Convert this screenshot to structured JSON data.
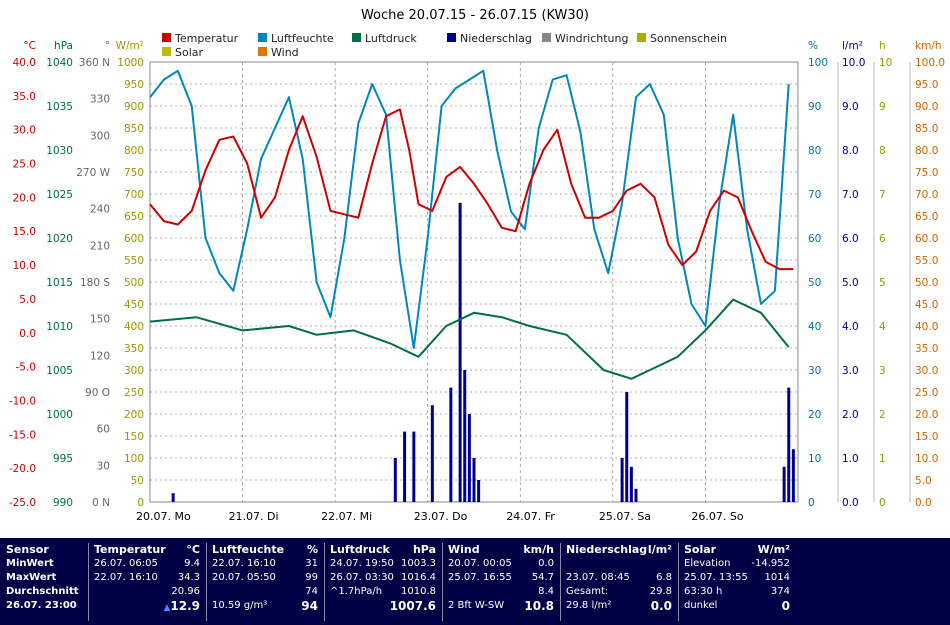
{
  "title": "Woche 20.07.15 - 26.07.15 (KW30)",
  "chart_data": {
    "type": "line",
    "x_label_days": [
      "20.07. Mo",
      "21.07. Di",
      "22.07. Mi",
      "23.07. Do",
      "24.07. Fr",
      "25.07. Sa",
      "26.07. So"
    ],
    "axes": {
      "temperature": {
        "unit": "°C",
        "ticks": [
          "40.0",
          "35.0",
          "30.0",
          "25.0",
          "20.0",
          "15.0",
          "10.0",
          "5.0",
          "0.0",
          "-5.0",
          "-10.0",
          "-15.0",
          "-20.0",
          "-25.0"
        ],
        "color": "#cc0000"
      },
      "pressure": {
        "unit": "hPa",
        "ticks": [
          "1040",
          "1035",
          "1030",
          "1025",
          "1020",
          "1015",
          "1010",
          "1005",
          "1000",
          "995",
          "990"
        ],
        "color": "#007040"
      },
      "direction": {
        "unit": "°",
        "ticks": [
          "360 N",
          "330",
          "300",
          "270 W",
          "240",
          "210",
          "180 S",
          "150",
          "120",
          "90 O",
          "60",
          "30",
          "0 N"
        ],
        "color": "#666666"
      },
      "solar": {
        "unit": "W/m²",
        "ticks": [
          "1000",
          "950",
          "900",
          "850",
          "800",
          "750",
          "700",
          "650",
          "600",
          "550",
          "500",
          "450",
          "400",
          "350",
          "300",
          "250",
          "200",
          "150",
          "100",
          "50",
          "0"
        ],
        "color": "#999900"
      },
      "humidity": {
        "unit": "%",
        "ticks": [
          "100",
          "90",
          "80",
          "70",
          "60",
          "50",
          "40",
          "30",
          "20",
          "10",
          "0"
        ],
        "color": "#0077aa"
      },
      "rain": {
        "unit": "l/m²",
        "ticks": [
          "10.0",
          "9.0",
          "8.0",
          "7.0",
          "6.0",
          "5.0",
          "4.0",
          "3.0",
          "2.0",
          "1.0",
          "0.0"
        ],
        "color": "#000080"
      },
      "sunshine": {
        "unit": "h",
        "ticks": [
          "10",
          "9",
          "8",
          "7",
          "6",
          "5",
          "4",
          "3",
          "2",
          "1",
          "0"
        ],
        "color": "#999900"
      },
      "wind": {
        "unit": "km/h",
        "ticks": [
          "100.0",
          "95.0",
          "90.0",
          "85.0",
          "80.0",
          "75.0",
          "70.0",
          "65.0",
          "60.0",
          "55.0",
          "50.0",
          "45.0",
          "40.0",
          "35.0",
          "30.0",
          "25.0",
          "20.0",
          "15.0",
          "10.0",
          "5.0",
          "0.0"
        ],
        "color": "#cc6600"
      }
    },
    "legend": [
      {
        "name": "Temperatur",
        "color": "#cc0000"
      },
      {
        "name": "Luftfeuchte",
        "color": "#0088bb"
      },
      {
        "name": "Luftdruck",
        "color": "#007040"
      },
      {
        "name": "Niederschlag",
        "color": "#000090"
      },
      {
        "name": "Windrichtung",
        "color": "#888888"
      },
      {
        "name": "Sonnenschein",
        "color": "#aaaa00"
      },
      {
        "name": "Solar",
        "color": "#bbbb00"
      },
      {
        "name": "Wind",
        "color": "#dd7700"
      }
    ],
    "series": [
      {
        "name": "Temperatur",
        "x": [
          0,
          0.15,
          0.3,
          0.45,
          0.6,
          0.75,
          0.9,
          1.05,
          1.2,
          1.35,
          1.5,
          1.65,
          1.8,
          1.95,
          2.1,
          2.25,
          2.4,
          2.55,
          2.7,
          2.8,
          2.9,
          3.05,
          3.2,
          3.35,
          3.5,
          3.65,
          3.8,
          3.95,
          4.1,
          4.25,
          4.4,
          4.55,
          4.7,
          4.85,
          5.0,
          5.15,
          5.3,
          5.45,
          5.6,
          5.75,
          5.9,
          6.05,
          6.2,
          6.35,
          6.5,
          6.65,
          6.8,
          6.95
        ],
        "values": [
          19,
          16.5,
          16,
          18,
          24,
          28.5,
          29,
          25,
          17,
          20,
          27,
          32,
          26,
          18,
          17.5,
          17,
          25,
          32,
          33,
          27,
          19,
          18,
          23,
          24.5,
          22,
          19,
          15.5,
          15,
          22,
          27,
          30,
          22,
          17,
          17,
          18,
          21,
          22,
          20,
          13,
          10,
          12,
          18,
          21,
          20,
          15,
          10.5,
          9.4,
          9.4
        ]
      },
      {
        "name": "Luftfeuchte",
        "x": [
          0,
          0.15,
          0.3,
          0.45,
          0.6,
          0.75,
          0.9,
          1.05,
          1.2,
          1.35,
          1.5,
          1.65,
          1.8,
          1.95,
          2.1,
          2.25,
          2.4,
          2.55,
          2.7,
          2.85,
          3.0,
          3.15,
          3.3,
          3.45,
          3.6,
          3.75,
          3.9,
          4.05,
          4.2,
          4.35,
          4.5,
          4.65,
          4.8,
          4.95,
          5.1,
          5.25,
          5.4,
          5.55,
          5.7,
          5.85,
          6.0,
          6.15,
          6.3,
          6.45,
          6.6,
          6.75,
          6.9
        ],
        "values": [
          92,
          96,
          98,
          90,
          60,
          52,
          48,
          62,
          78,
          85,
          92,
          78,
          50,
          42,
          60,
          86,
          95,
          88,
          55,
          35,
          60,
          90,
          94,
          96,
          98,
          80,
          66,
          62,
          85,
          96,
          97,
          84,
          62,
          52,
          68,
          92,
          95,
          88,
          60,
          45,
          40,
          68,
          88,
          62,
          45,
          48,
          95
        ]
      },
      {
        "name": "Luftdruck",
        "x": [
          0,
          0.5,
          1.0,
          1.5,
          1.8,
          2.2,
          2.6,
          2.9,
          3.2,
          3.5,
          3.8,
          4.1,
          4.5,
          4.9,
          5.2,
          5.4,
          5.7,
          6.0,
          6.3,
          6.6,
          6.9
        ],
        "values": [
          1010.5,
          1011,
          1009.5,
          1010,
          1009,
          1009.5,
          1008,
          1006.5,
          1010,
          1011.5,
          1011,
          1010,
          1009,
          1005,
          1004,
          1005,
          1006.5,
          1009.5,
          1013,
          1011.5,
          1007.6
        ]
      },
      {
        "name": "Niederschlag",
        "x": [
          0.25,
          2.65,
          2.75,
          2.85,
          3.05,
          3.25,
          3.35,
          3.4,
          3.45,
          3.5,
          3.55,
          5.1,
          5.15,
          5.2,
          5.25,
          6.85,
          6.9,
          6.95
        ],
        "values": [
          0.2,
          1.0,
          1.6,
          1.6,
          2.2,
          2.6,
          6.8,
          3.0,
          2.0,
          1.0,
          0.5,
          1.0,
          2.5,
          0.8,
          0.3,
          0.8,
          2.6,
          1.2
        ]
      }
    ]
  },
  "stats": {
    "sensor": {
      "header": "Sensor",
      "rows": [
        "MinWert",
        "MaxWert",
        "Durchschnitt",
        "26.07. 23:00"
      ]
    },
    "temp": {
      "header": "Temperatur",
      "unit": "°C",
      "min_date": "26.07. 06:05",
      "min": "9.4",
      "max_date": "22.07. 16:10",
      "max": "34.3",
      "avg": "20.96",
      "current": "12.9"
    },
    "hum": {
      "header": "Luftfeuchte",
      "unit": "%",
      "min_date": "22.07. 16:10",
      "min": "31",
      "max_date": "20.07. 05:50",
      "max": "99",
      "avg": "74",
      "abs": "10.59 g/m³",
      "current": "94"
    },
    "press": {
      "header": "Luftdruck",
      "unit": "hPa",
      "min_date": "24.07. 19:50",
      "min": "1003.3",
      "max_date": "26.07. 03:30",
      "max": "1016.4",
      "trend": "^1.7hPa/h",
      "avg": "1010.8",
      "current": "1007.6"
    },
    "wind": {
      "header": "Wind",
      "unit": "km/h",
      "min_date": "20.07. 00:05",
      "min": "0.0",
      "max_date": "25.07. 16:55",
      "max": "54.7",
      "avg": "8.4",
      "dir": "2 Bft W-SW",
      "current": "10.8"
    },
    "rain": {
      "header": "Niederschlag",
      "unit": "l/m²",
      "max_date": "23.07. 08:45",
      "max": "6.8",
      "total_label": "Gesamt:",
      "total": "29.8",
      "week": "29.8 l/m²",
      "current": "0.0"
    },
    "solar": {
      "header": "Solar",
      "unit": "W/m²",
      "elev_label": "Elevation",
      "elev": "-14.952",
      "max_date": "25.07. 13:55",
      "max": "1014",
      "hours": "63:30 h",
      "avg": "374",
      "state": "dunkel",
      "current": "0"
    }
  }
}
